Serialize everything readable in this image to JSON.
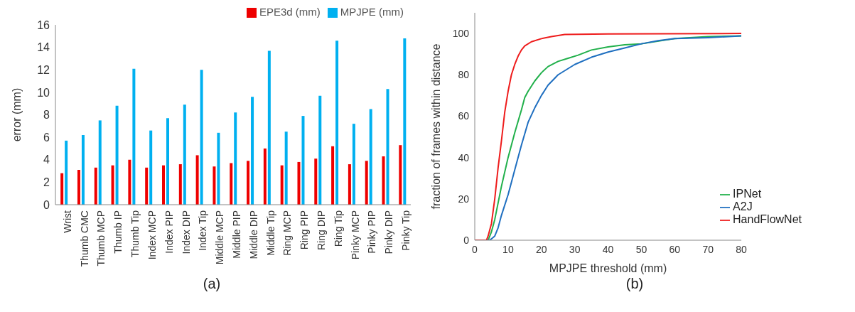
{
  "chart_data": [
    {
      "type": "bar",
      "ylabel": "error (mm)",
      "categories": [
        "Wrist",
        "Thumb CMC",
        "Thumb MCP",
        "Thumb IP",
        "Thumb Tip",
        "Index MCP",
        "Index PIP",
        "Index DIP",
        "Index Tip",
        "Middle MCP",
        "Middle PIP",
        "Middle DIP",
        "Middle Tip",
        "Ring MCP",
        "Ring PIP",
        "Ring DIP",
        "Ring Tip",
        "Pinky MCP",
        "Pinky PIP",
        "Pinky DIP",
        "Pinky Tip"
      ],
      "series": [
        {
          "name": "EPE3d (mm)",
          "color": "#ee0000",
          "values": [
            2.8,
            3.1,
            3.3,
            3.5,
            4.0,
            3.3,
            3.5,
            3.6,
            4.4,
            3.4,
            3.7,
            3.9,
            5.0,
            3.5,
            3.8,
            4.1,
            5.2,
            3.6,
            3.9,
            4.3,
            5.3
          ]
        },
        {
          "name": "MPJPE (mm)",
          "color": "#00b0f0",
          "values": [
            5.7,
            6.2,
            7.5,
            8.8,
            12.1,
            6.6,
            7.7,
            8.9,
            12.0,
            6.4,
            8.2,
            9.6,
            13.7,
            6.5,
            7.9,
            9.7,
            14.6,
            7.2,
            8.5,
            10.3,
            14.8
          ]
        }
      ],
      "ylim": [
        0,
        16
      ],
      "yticks": [
        0,
        2,
        4,
        6,
        8,
        10,
        12,
        14,
        16
      ],
      "legend": "top right",
      "annotations": [
        "(a)"
      ]
    },
    {
      "type": "line",
      "xlabel": "MPJPE threshold (mm)",
      "ylabel": "fraction of frames within distance",
      "series": [
        {
          "name": "IPNet",
          "color": "#21b04b",
          "x": [
            0,
            4,
            5,
            6,
            7,
            8,
            10,
            12,
            14,
            15,
            16,
            18,
            20,
            22,
            25,
            28,
            31,
            35,
            40,
            45,
            50,
            60,
            70,
            80
          ],
          "values": [
            0,
            0,
            4,
            10,
            18,
            26,
            40,
            52,
            63,
            69,
            72,
            77,
            81,
            84,
            86.5,
            88,
            89.5,
            92,
            93.5,
            94.5,
            95,
            97.5,
            98.5,
            98.8
          ]
        },
        {
          "name": "A2J",
          "color": "#1f6fc0",
          "x": [
            0,
            4.5,
            6,
            7,
            8,
            10,
            12,
            14,
            16,
            18,
            20,
            22,
            25,
            30,
            35,
            40,
            45,
            50,
            55,
            60,
            70,
            80
          ],
          "values": [
            0,
            0,
            2,
            6,
            12,
            22,
            34,
            46,
            57,
            64,
            70,
            75,
            80,
            85,
            88.5,
            91,
            93,
            95,
            96.5,
            97.5,
            98,
            98.8
          ]
        },
        {
          "name": "HandFlowNet",
          "color": "#ee1c1c",
          "x": [
            0,
            3.5,
            4,
            5,
            6,
            7,
            8,
            9,
            10,
            11,
            12,
            13,
            14,
            15,
            17,
            20,
            23,
            27,
            40,
            80
          ],
          "values": [
            0,
            0,
            2,
            8,
            20,
            35,
            48,
            62,
            72,
            80,
            85,
            89,
            92,
            94,
            96,
            97.5,
            98.5,
            99.5,
            99.8,
            100
          ]
        }
      ],
      "xlim": [
        0,
        80
      ],
      "xticks": [
        0,
        10,
        20,
        30,
        40,
        50,
        60,
        70,
        80
      ],
      "ylim": [
        0,
        110
      ],
      "yticks": [
        0,
        20,
        40,
        60,
        80,
        100
      ],
      "legend": "bottom right",
      "annotations": [
        "(b)"
      ]
    }
  ]
}
